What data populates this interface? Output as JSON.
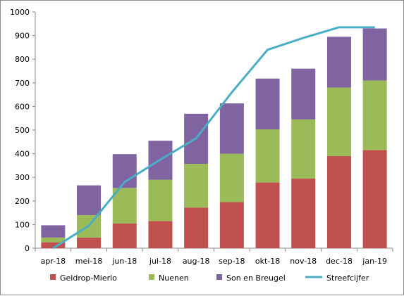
{
  "chart_data": {
    "type": "bar",
    "stacked": true,
    "categories": [
      "apr-18",
      "mei-18",
      "jun-18",
      "jul-18",
      "aug-18",
      "sep-18",
      "okt-18",
      "nov-18",
      "dec-18",
      "jan-19"
    ],
    "series": [
      {
        "name": "Geldrop-Mierlo",
        "type": "bar",
        "color": "#c0504d",
        "values": [
          25,
          45,
          105,
          115,
          172,
          195,
          278,
          295,
          390,
          415
        ]
      },
      {
        "name": "Nuenen",
        "type": "bar",
        "color": "#9bbb59",
        "values": [
          20,
          95,
          150,
          175,
          185,
          205,
          225,
          250,
          290,
          295
        ]
      },
      {
        "name": "Son en Breugel",
        "type": "bar",
        "color": "#8064a2",
        "values": [
          52,
          126,
          143,
          165,
          212,
          213,
          215,
          215,
          215,
          220
        ]
      },
      {
        "name": "Streefcijfer",
        "type": "line",
        "color": "#4bacc6",
        "values": [
          0,
          95,
          280,
          375,
          465,
          660,
          840,
          890,
          935,
          935
        ]
      }
    ],
    "yticks": [
      "0",
      "100",
      "200",
      "300",
      "400",
      "500",
      "600",
      "700",
      "800",
      "900",
      "1000"
    ],
    "ylim": [
      0,
      1000
    ],
    "grid": false,
    "legend_position": "bottom"
  }
}
